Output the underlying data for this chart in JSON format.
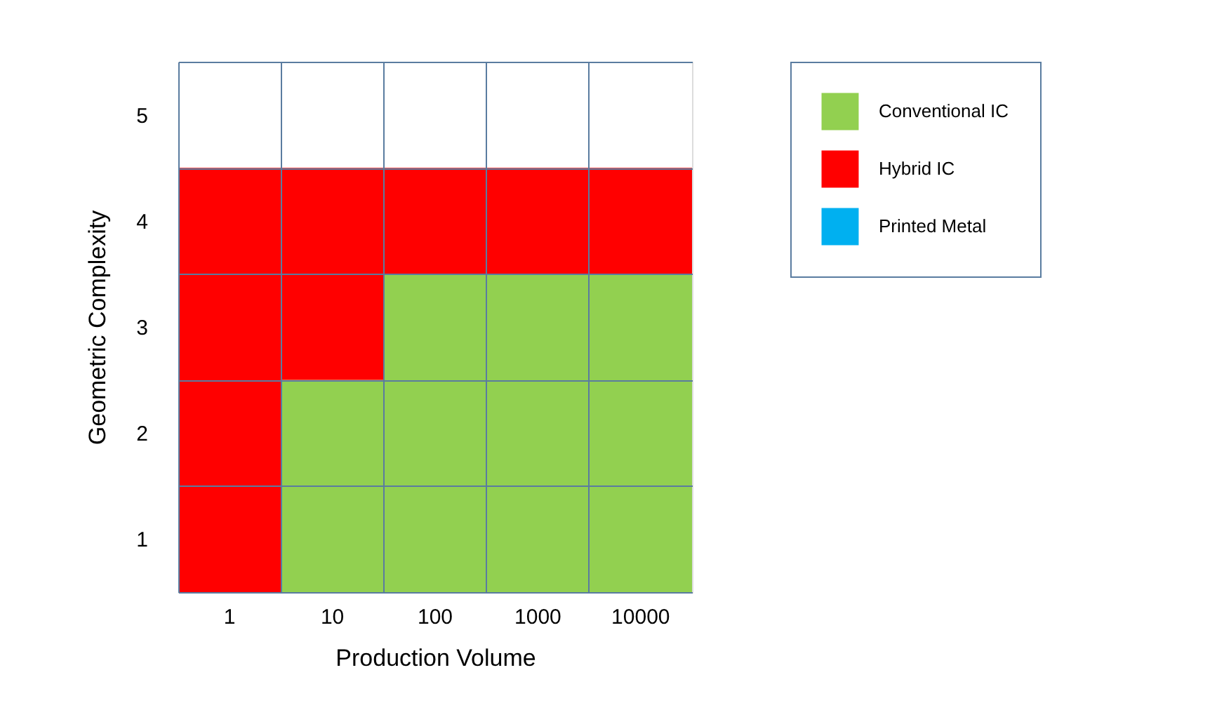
{
  "chart_data": {
    "type": "bar",
    "stacked": true,
    "xlabel": "Production Volume",
    "ylabel": "Geometric Complexity",
    "categories": [
      "1",
      "10",
      "100",
      "1000",
      "10000"
    ],
    "series": [
      {
        "name": "Conventional IC",
        "color": "#92d050",
        "values": [
          0,
          2,
          3,
          3,
          3
        ]
      },
      {
        "name": "Hybrid IC",
        "color": "#ff0000",
        "values": [
          4,
          2,
          1,
          1,
          1
        ]
      },
      {
        "name": "Printed Metal",
        "color": "#00b0f0",
        "values": [
          0,
          0,
          0,
          0,
          0
        ]
      }
    ],
    "ylim": [
      0,
      5
    ],
    "yticks": [
      {
        "value": 0,
        "label": null
      },
      {
        "value": 0.5,
        "label": "1"
      },
      {
        "value": 1,
        "label": null
      },
      {
        "value": 1.5,
        "label": "2"
      },
      {
        "value": 2,
        "label": null
      },
      {
        "value": 2.5,
        "label": "3"
      },
      {
        "value": 3,
        "label": null
      },
      {
        "value": 3.5,
        "label": "4"
      },
      {
        "value": 4,
        "label": null
      },
      {
        "value": 4.5,
        "label": "5"
      },
      {
        "value": 5,
        "label": null
      }
    ],
    "grid": true,
    "legend": "right"
  }
}
